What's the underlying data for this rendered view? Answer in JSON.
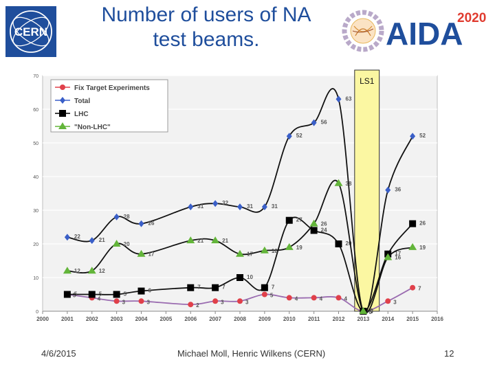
{
  "header": {
    "title_line1": "Number of users of NA",
    "title_line2": "test beams.",
    "cern_logo_text": "CERN",
    "aida_logo_text": "AIDA",
    "aida_logo_year": "2020"
  },
  "footer": {
    "date": "4/6/2015",
    "authors": "Michael Moll, Henric Wilkens (CERN)",
    "page": "12"
  },
  "colors": {
    "title": "#1f4e9c",
    "fix_target": "#e0404a",
    "total": "#3a5fc8",
    "lhc": "#000000",
    "non_lhc": "#63b53a",
    "ls1_fill": "#fbf7a2",
    "ls1_stroke": "#2c2c2c",
    "chart_bg": "#f2f2f2"
  },
  "chart_data": {
    "type": "line",
    "title": "",
    "xlabel": "",
    "ylabel": "",
    "xlim": [
      2000,
      2016
    ],
    "ylim": [
      0,
      70
    ],
    "xticks": [
      "2000",
      "2001",
      "2002",
      "2003",
      "2004",
      "2005",
      "2006",
      "2007",
      "2008",
      "2009",
      "2010",
      "2011",
      "2012",
      "2013",
      "2014",
      "2015",
      "2016"
    ],
    "yticks": [
      "0",
      "10",
      "20",
      "30",
      "40",
      "50",
      "60",
      "70"
    ],
    "grid": true,
    "legend_position": "top-left",
    "annotation": {
      "label": "LS1",
      "x_start": 2012.65,
      "x_end": 2013.65
    },
    "series": [
      {
        "name": "Fix Target Experiments",
        "marker": "circle",
        "color": "#e0404a",
        "x": [
          2001,
          2002,
          2003,
          2004,
          2006,
          2007,
          2008,
          2009,
          2010,
          2011,
          2012,
          2013,
          2014,
          2015
        ],
        "y": [
          5,
          4,
          3,
          3,
          2,
          3,
          3,
          5,
          4,
          4,
          4,
          0,
          3,
          7
        ],
        "labels": [
          "5",
          "4",
          "3",
          "3",
          "2",
          "3",
          "3",
          "5",
          "4",
          "4",
          "4",
          "0",
          "3",
          "7"
        ]
      },
      {
        "name": "Total",
        "marker": "diamond",
        "color": "#3a5fc8",
        "x": [
          2001,
          2002,
          2003,
          2004,
          2006,
          2007,
          2008,
          2009,
          2010,
          2011,
          2012,
          2013,
          2014,
          2015
        ],
        "y": [
          22,
          21,
          28,
          26,
          31,
          32,
          31,
          31,
          52,
          56,
          63,
          0,
          36,
          52
        ],
        "labels": [
          "22",
          "21",
          "28",
          "26",
          "31",
          "32",
          "31",
          "31",
          "52",
          "56",
          "63",
          "0",
          "36",
          "52"
        ]
      },
      {
        "name": "LHC",
        "marker": "square",
        "color": "#000000",
        "x": [
          2001,
          2002,
          2003,
          2004,
          2006,
          2007,
          2008,
          2009,
          2010,
          2011,
          2012,
          2013,
          2014,
          2015
        ],
        "y": [
          5,
          5,
          5,
          6,
          7,
          7,
          10,
          7,
          27,
          24,
          20,
          0,
          17,
          26
        ],
        "labels": [
          "5",
          "5",
          "5",
          "6",
          "7",
          "7",
          "10",
          "7",
          "27",
          "24",
          "20",
          "0",
          "17",
          "26"
        ]
      },
      {
        "name": "\"Non-LHC\"",
        "marker": "triangle",
        "color": "#63b53a",
        "x": [
          2001,
          2002,
          2003,
          2004,
          2006,
          2007,
          2008,
          2009,
          2010,
          2011,
          2012,
          2013,
          2014,
          2015
        ],
        "y": [
          12,
          12,
          20,
          17,
          21,
          21,
          17,
          18,
          19,
          26,
          38,
          0,
          16,
          19
        ],
        "labels": [
          "12",
          "12",
          "20",
          "17",
          "21",
          "21",
          "17",
          "18",
          "19",
          "26",
          "38",
          "0",
          "16",
          "19"
        ]
      }
    ]
  }
}
